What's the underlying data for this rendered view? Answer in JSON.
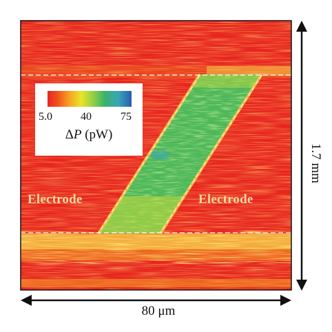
{
  "left_electrode_label": "Electrode",
  "right_electrode_label": "Electrode",
  "colorbar": {
    "tick_min": "5.0",
    "tick_mid": "40",
    "tick_max": "75",
    "symbol": "ΔP",
    "unit": "(pW)",
    "colors": [
      "#e8251f",
      "#f7a21f",
      "#e9e42a",
      "#39b36a",
      "#2a5fb0"
    ]
  },
  "vertical_scale": "1.7 mm",
  "horizontal_scale": "80 μm",
  "colors": {
    "background": "#e8251f",
    "channel": "#4db85a",
    "boundary": "#f6c84a",
    "electrode_label": "#f3d9a0"
  }
}
